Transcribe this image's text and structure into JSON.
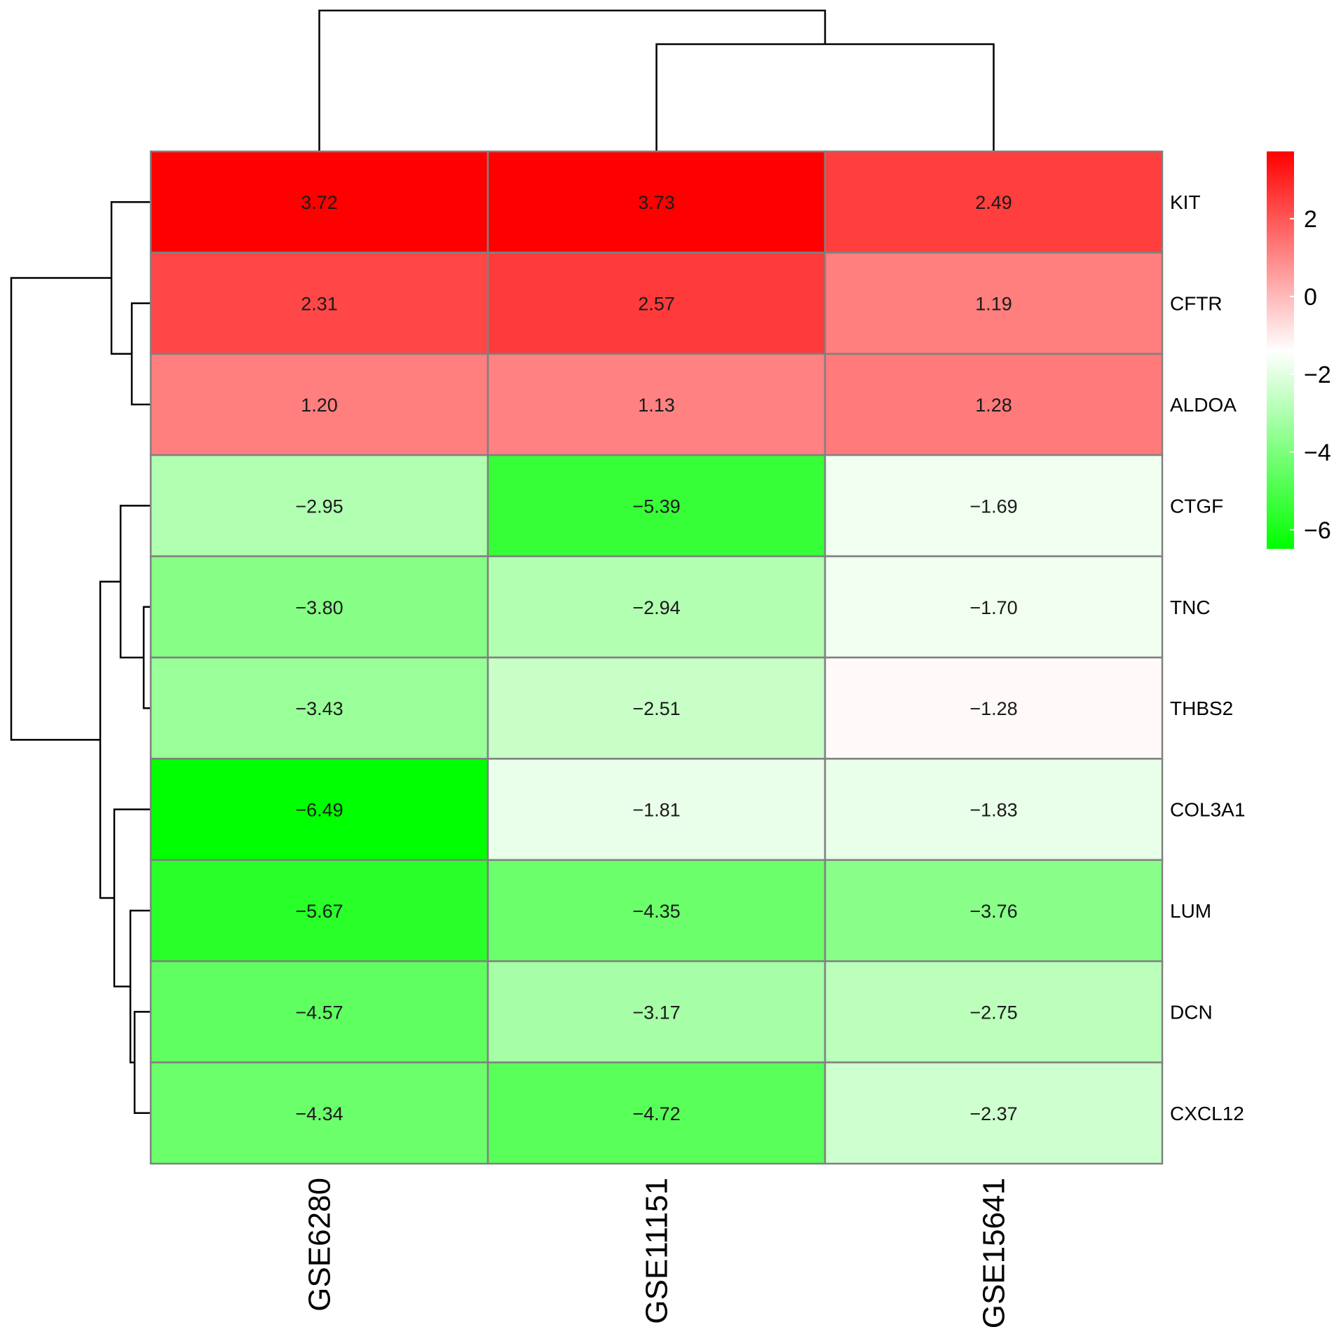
{
  "chart_data": {
    "type": "heatmap",
    "title": "",
    "columns": [
      "GSE6280",
      "GSE11151",
      "GSE15641"
    ],
    "rows": [
      "KIT",
      "CFTR",
      "ALDOA",
      "CTGF",
      "TNC",
      "THBS2",
      "COL3A1",
      "LUM",
      "DCN",
      "CXCL12"
    ],
    "values": [
      [
        3.72,
        3.73,
        2.49
      ],
      [
        2.31,
        2.57,
        1.19
      ],
      [
        1.2,
        1.13,
        1.28
      ],
      [
        -2.95,
        -5.39,
        -1.69
      ],
      [
        -3.8,
        -2.94,
        -1.7
      ],
      [
        -3.43,
        -2.51,
        -1.28
      ],
      [
        -6.49,
        -1.81,
        -1.83
      ],
      [
        -5.67,
        -4.35,
        -3.76
      ],
      [
        -4.57,
        -3.17,
        -2.75
      ],
      [
        -4.34,
        -4.72,
        -2.37
      ]
    ],
    "cell_labels": [
      [
        "3.72",
        "3.73",
        "2.49"
      ],
      [
        "2.31",
        "2.57",
        "1.19"
      ],
      [
        "1.20",
        "1.13",
        "1.28"
      ],
      [
        "−2.95",
        "−5.39",
        "−1.69"
      ],
      [
        "−3.80",
        "−2.94",
        "−1.70"
      ],
      [
        "−3.43",
        "−2.51",
        "−1.28"
      ],
      [
        "−6.49",
        "−1.81",
        "−1.83"
      ],
      [
        "−5.67",
        "−4.35",
        "−3.76"
      ],
      [
        "−4.57",
        "−3.17",
        "−2.75"
      ],
      [
        "−4.34",
        "−4.72",
        "−2.37"
      ]
    ],
    "color_scale": {
      "min": -6.49,
      "max": 3.73,
      "midpoint": -1.4,
      "low_color": "#00ff00",
      "mid_color": "#ffffff",
      "high_color": "#ff0000"
    },
    "legend": {
      "position": "right",
      "ticks": [
        2,
        0,
        -2,
        -4,
        -6
      ],
      "tick_labels": [
        "2",
        "0",
        "−2",
        "−4",
        "−6"
      ]
    },
    "column_dendrogram": true,
    "row_dendrogram": true
  },
  "colors": {
    "cell_border": "#808080",
    "dendrogram": "#000000",
    "background": "#ffffff"
  }
}
